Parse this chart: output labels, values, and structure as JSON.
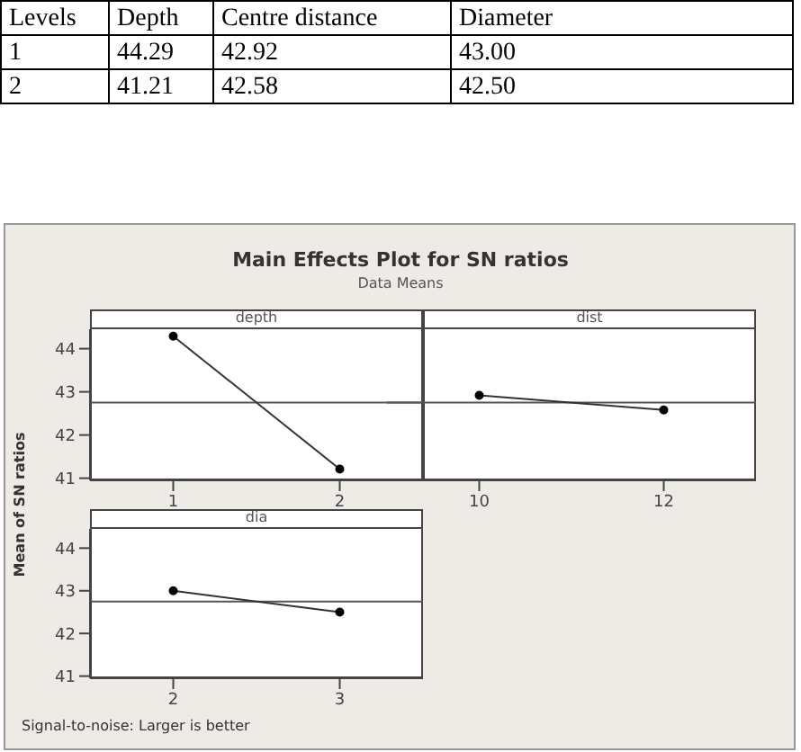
{
  "chart_data": [
    {
      "type": "other",
      "annotations": [
        "Levels",
        "Depth",
        "Centre distance",
        "Diameter",
        "1",
        "44.29",
        "42.92",
        "43.00",
        "2",
        "41.21",
        "42.58",
        "42.50"
      ]
    },
    {
      "type": "line",
      "title": "Main Effects Plot for SN ratios",
      "subtitle": "Data Means",
      "ylabel": "Mean of SN ratios",
      "xlabel": "depth",
      "annotations": [
        "Signal-to-noise: Larger is better"
      ],
      "categories": [
        "1",
        "2"
      ],
      "series": [
        {
          "color": "#333333",
          "values": [
            44.29,
            41.21
          ]
        }
      ],
      "ylim": [
        40.95,
        44.45
      ],
      "yticks": [
        41,
        42,
        43,
        44
      ],
      "ref_lines": [
        {
          "axis": "y",
          "value": 42.75,
          "color": "#555555"
        }
      ],
      "marker": "circle",
      "grid": false,
      "legend": false
    },
    {
      "type": "line",
      "xlabel": "dist",
      "categories": [
        "10",
        "12"
      ],
      "series": [
        {
          "color": "#333333",
          "values": [
            42.92,
            42.58
          ]
        }
      ],
      "ylim": [
        40.95,
        44.45
      ],
      "yticks": [
        41,
        42,
        43,
        44
      ],
      "tick_labels": "x",
      "ref_lines": [
        {
          "axis": "y",
          "value": 42.75,
          "color": "#555555"
        }
      ],
      "marker": "circle",
      "grid": false,
      "legend": false
    },
    {
      "type": "line",
      "xlabel": "dia",
      "categories": [
        "2",
        "3"
      ],
      "series": [
        {
          "color": "#333333",
          "values": [
            43.0,
            42.5
          ]
        }
      ],
      "ylim": [
        40.95,
        44.45
      ],
      "yticks": [
        41,
        42,
        43,
        44
      ],
      "ref_lines": [
        {
          "axis": "y",
          "value": 42.75,
          "color": "#555555"
        }
      ],
      "marker": "circle",
      "grid": false,
      "legend": false
    }
  ]
}
